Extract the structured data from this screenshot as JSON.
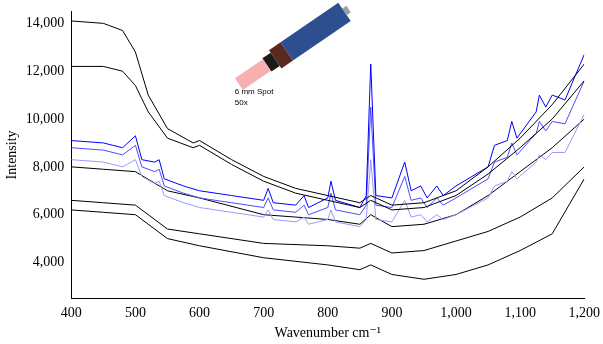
{
  "chart_data": {
    "type": "line",
    "x_label": "Wavenumber cm⁻¹",
    "y_label": "Intensity",
    "annotations": [
      "6 mm Spot",
      "50x"
    ],
    "xlim": [
      400,
      1200
    ],
    "xticks": [
      400,
      500,
      600,
      700,
      800,
      900,
      1000,
      1100,
      1200
    ],
    "ylim": [
      2500,
      14500
    ],
    "yticks": [
      4000,
      6000,
      8000,
      10000,
      12000,
      14000
    ],
    "grid": false,
    "series": [
      {
        "color": "#000000",
        "x": [
          400,
          450,
          480,
          500,
          520,
          550,
          590,
          600,
          650,
          700,
          750,
          800,
          850,
          867,
          900,
          950,
          1000,
          1050,
          1100,
          1150,
          1200
        ],
        "values": [
          14100,
          14000,
          13700,
          12800,
          11000,
          9600,
          9000,
          9100,
          8300,
          7600,
          7100,
          6800,
          6500,
          6800,
          6400,
          6500,
          7000,
          8000,
          9200,
          10600,
          12300
        ]
      },
      {
        "color": "#000000",
        "x": [
          400,
          450,
          480,
          500,
          520,
          550,
          590,
          600,
          650,
          700,
          750,
          800,
          850,
          867,
          900,
          950,
          1000,
          1050,
          1100,
          1150,
          1200
        ],
        "values": [
          12200,
          12200,
          12000,
          11400,
          10300,
          9200,
          8800,
          8900,
          8100,
          7400,
          6900,
          6600,
          6300,
          6600,
          6200,
          6300,
          6800,
          7700,
          8800,
          10000,
          11600
        ]
      },
      {
        "color": "#0000ff",
        "x": [
          400,
          450,
          480,
          500,
          510,
          530,
          537,
          545,
          575,
          600,
          650,
          700,
          707,
          715,
          750,
          763,
          770,
          800,
          805,
          812,
          850,
          860,
          867,
          875,
          900,
          920,
          930,
          945,
          955,
          970,
          980,
          1000,
          1050,
          1060,
          1080,
          1087,
          1095,
          1125,
          1130,
          1140,
          1150,
          1170,
          1200
        ],
        "values": [
          9100,
          9000,
          8800,
          9300,
          8300,
          8200,
          8300,
          7500,
          7200,
          7000,
          6800,
          6600,
          7100,
          6500,
          6400,
          6800,
          6300,
          6700,
          7400,
          6600,
          6300,
          6800,
          12300,
          6800,
          6700,
          8200,
          7000,
          7200,
          6700,
          7200,
          6800,
          7200,
          8000,
          8900,
          9100,
          9900,
          9200,
          10300,
          11000,
          10500,
          11000,
          10800,
          12700
        ]
      },
      {
        "color": "#4d4dff",
        "x": [
          400,
          450,
          480,
          500,
          510,
          530,
          537,
          545,
          575,
          600,
          650,
          700,
          707,
          715,
          750,
          763,
          770,
          800,
          805,
          812,
          850,
          860,
          867,
          875,
          900,
          920,
          930,
          945,
          955,
          970,
          980,
          1000,
          1050,
          1060,
          1080,
          1087,
          1095,
          1125,
          1130,
          1140,
          1150,
          1170,
          1200
        ],
        "values": [
          8800,
          8700,
          8500,
          8900,
          8000,
          7800,
          7900,
          7200,
          6900,
          6700,
          6500,
          6300,
          6700,
          6200,
          6100,
          6400,
          6000,
          6300,
          6900,
          6200,
          6000,
          6400,
          10500,
          6400,
          6300,
          7600,
          6600,
          6700,
          6300,
          6700,
          6400,
          6700,
          7500,
          8200,
          8400,
          9000,
          8500,
          9400,
          9900,
          9500,
          9900,
          9800,
          11600
        ]
      },
      {
        "color": "#9999ff",
        "x": [
          400,
          450,
          480,
          500,
          510,
          530,
          537,
          545,
          575,
          600,
          650,
          700,
          707,
          715,
          750,
          763,
          770,
          800,
          805,
          812,
          850,
          860,
          867,
          875,
          900,
          920,
          930,
          945,
          955,
          970,
          980,
          1000,
          1050,
          1060,
          1080,
          1087,
          1095,
          1125,
          1130,
          1140,
          1150,
          1170,
          1200
        ],
        "values": [
          8300,
          8200,
          8000,
          8300,
          7600,
          7300,
          7400,
          6800,
          6500,
          6300,
          6100,
          5900,
          6200,
          5800,
          5700,
          5900,
          5600,
          5800,
          6200,
          5700,
          5500,
          5800,
          8300,
          5800,
          5700,
          6600,
          5900,
          6000,
          5700,
          6000,
          5800,
          6000,
          6700,
          7200,
          7400,
          7800,
          7500,
          8200,
          8500,
          8300,
          8600,
          8600,
          10200
        ]
      },
      {
        "color": "#000000",
        "x": [
          400,
          450,
          500,
          550,
          600,
          700,
          800,
          850,
          867,
          900,
          950,
          1000,
          1050,
          1100,
          1150,
          1200
        ],
        "values": [
          8000,
          7900,
          7800,
          7000,
          6700,
          6000,
          5800,
          5600,
          6000,
          5500,
          5600,
          6000,
          6800,
          7800,
          8800,
          10000
        ]
      },
      {
        "color": "#000000",
        "x": [
          400,
          450,
          500,
          550,
          600,
          700,
          800,
          850,
          867,
          900,
          950,
          1000,
          1050,
          1100,
          1150,
          1200
        ],
        "values": [
          6600,
          6500,
          6400,
          5400,
          5200,
          4800,
          4700,
          4600,
          4800,
          4400,
          4500,
          4900,
          5300,
          5900,
          6700,
          8000
        ]
      },
      {
        "color": "#000000",
        "x": [
          400,
          450,
          500,
          550,
          600,
          700,
          800,
          850,
          867,
          900,
          950,
          1000,
          1050,
          1100,
          1150,
          1200
        ],
        "values": [
          6200,
          6100,
          6000,
          5000,
          4700,
          4200,
          3900,
          3700,
          3900,
          3500,
          3300,
          3500,
          3900,
          4500,
          5200,
          7500
        ]
      }
    ]
  }
}
